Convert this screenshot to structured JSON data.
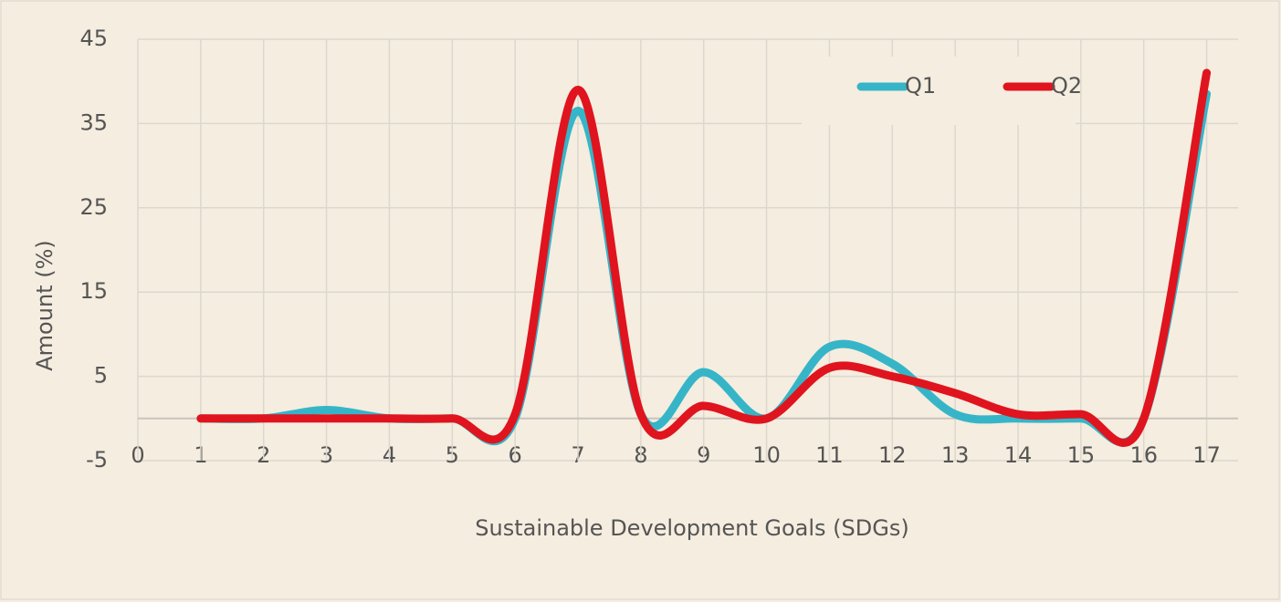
{
  "chart_data": {
    "type": "line",
    "smooth": true,
    "grid": true,
    "legend": "top-right",
    "xlabel": "Sustainable Development Goals (SDGs)",
    "ylabel": "Amount (%)",
    "x": [
      1,
      2,
      3,
      4,
      5,
      6,
      7,
      8,
      9,
      10,
      11,
      12,
      13,
      14,
      15,
      16,
      17
    ],
    "series": [
      {
        "name": "Q1",
        "color": "#36b5c8",
        "values": [
          0,
          0,
          1,
          0,
          0,
          0,
          36.5,
          0.5,
          5.5,
          0,
          8.5,
          6.5,
          0.5,
          0,
          0,
          0,
          38.5
        ]
      },
      {
        "name": "Q2",
        "color": "#e0141e",
        "values": [
          0,
          0,
          0,
          0,
          0,
          0.5,
          39,
          0.5,
          1.5,
          0,
          6,
          5,
          3,
          0.5,
          0.5,
          0,
          41
        ]
      }
    ],
    "xlim": [
      0,
      17.5
    ],
    "xticks": [
      0,
      1,
      2,
      3,
      4,
      5,
      6,
      7,
      8,
      9,
      10,
      11,
      12,
      13,
      14,
      15,
      16,
      17
    ],
    "ylim": [
      -5,
      45
    ],
    "yticks": [
      -5,
      5,
      15,
      25,
      35,
      45
    ]
  }
}
